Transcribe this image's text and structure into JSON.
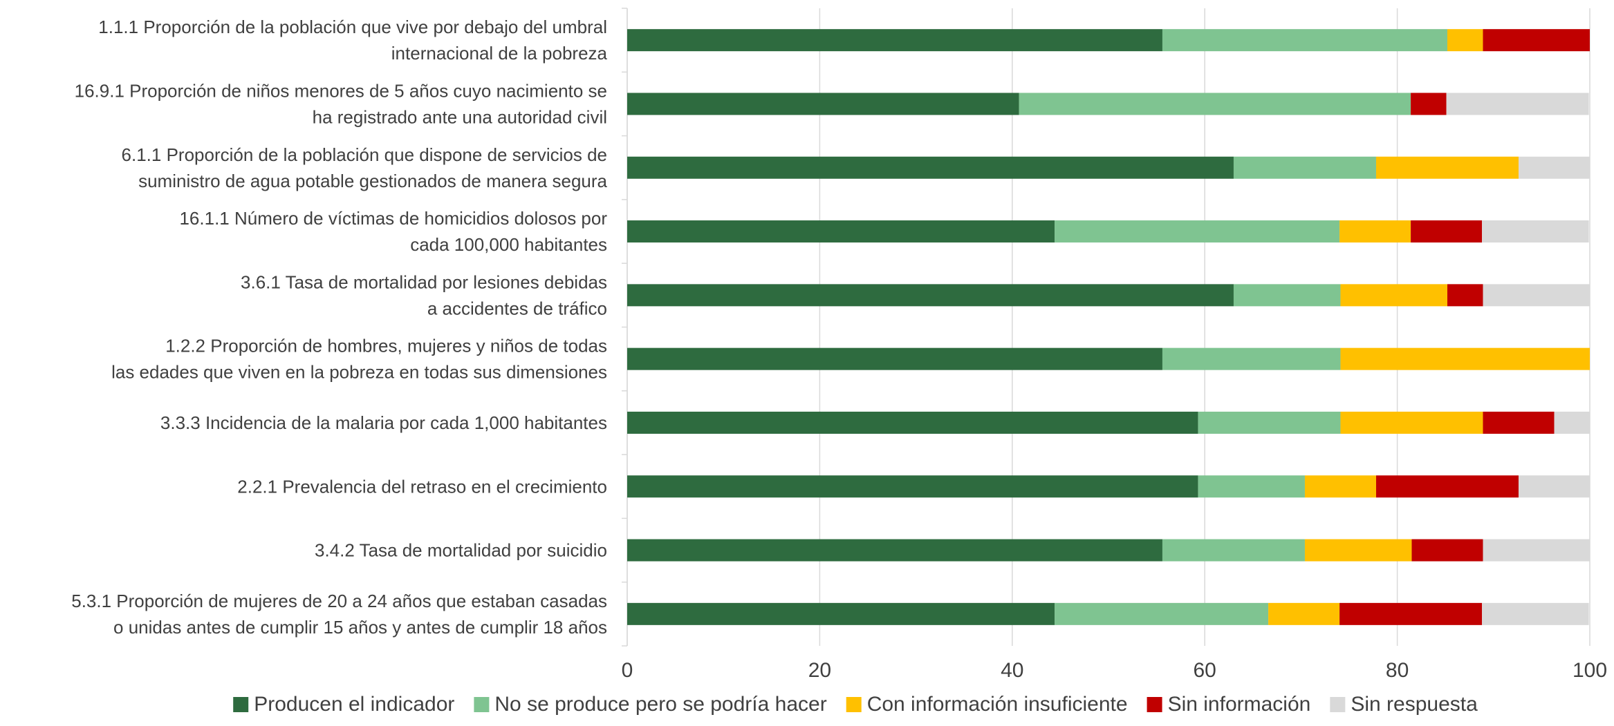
{
  "chart_data": {
    "type": "bar",
    "orientation": "horizontal",
    "stacked": true,
    "xlim": [
      0,
      100
    ],
    "xticks": [
      0,
      20,
      40,
      60,
      80,
      100
    ],
    "grid": "vertical",
    "legend_position": "bottom",
    "categories": [
      [
        "1.1.1 Proporción de la población que vive por debajo del umbral",
        "internacional de la pobreza"
      ],
      [
        "16.9.1 Proporción de niños menores de 5 años cuyo nacimiento se",
        "ha registrado ante una autoridad civil"
      ],
      [
        "6.1.1 Proporción de la población que dispone de servicios de",
        "suministro de agua potable gestionados de manera segura"
      ],
      [
        "16.1.1 Número de víctimas de homicidios dolosos por",
        "cada 100,000 habitantes"
      ],
      [
        "3.6.1 Tasa de mortalidad por lesiones debidas",
        "a accidentes de tráfico"
      ],
      [
        "1.2.2 Proporción de hombres, mujeres y niños de todas",
        "las edades que viven en la pobreza en todas sus dimensiones"
      ],
      [
        "3.3.3 Incidencia de la malaria por cada 1,000 habitantes"
      ],
      [
        "2.2.1 Prevalencia del retraso en el crecimiento"
      ],
      [
        "3.4.2 Tasa de mortalidad por suicidio"
      ],
      [
        "5.3.1 Proporción de mujeres de  20 a 24 años que estaban casadas",
        "o unidas antes de cumplir 15 años y antes de cumplir 18 años"
      ]
    ],
    "series": [
      {
        "name": "Producen el indicador",
        "color": "#2e6b3f",
        "values": [
          55.6,
          40.7,
          63.0,
          44.4,
          63.0,
          55.6,
          59.3,
          59.3,
          55.6,
          44.4
        ]
      },
      {
        "name": "No se produce pero se podría hacer",
        "color": "#7fc491",
        "values": [
          29.6,
          40.7,
          14.8,
          29.6,
          11.1,
          18.5,
          14.8,
          11.1,
          14.8,
          22.2
        ]
      },
      {
        "name": "Con información insuficiente",
        "color": "#ffc000",
        "values": [
          3.7,
          0,
          14.8,
          7.4,
          11.1,
          25.9,
          14.8,
          7.4,
          11.1,
          7.4
        ]
      },
      {
        "name": "Sin información",
        "color": "#c00000",
        "values": [
          11.1,
          3.7,
          0,
          7.4,
          3.7,
          0,
          7.4,
          14.8,
          7.4,
          14.8
        ]
      },
      {
        "name": "Sin  respuesta",
        "color": "#d9d9d9",
        "values": [
          0,
          14.8,
          7.4,
          11.1,
          11.1,
          0,
          3.7,
          7.4,
          11.1,
          11.1
        ]
      }
    ]
  }
}
